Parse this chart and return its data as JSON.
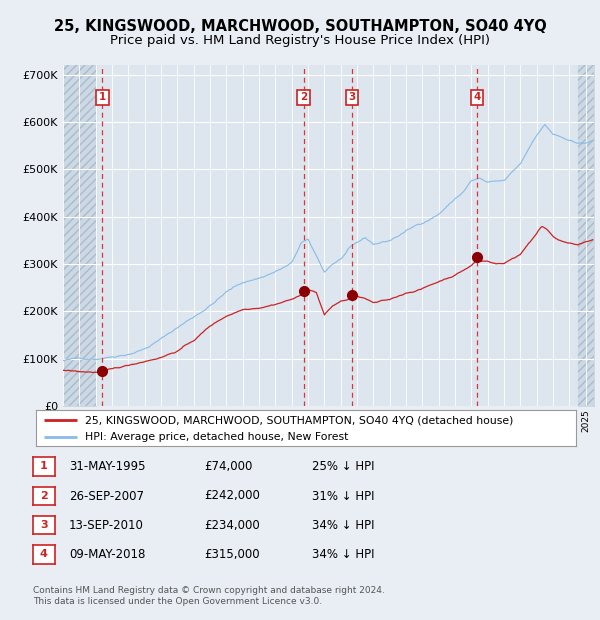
{
  "title": "25, KINGSWOOD, MARCHWOOD, SOUTHAMPTON, SO40 4YQ",
  "subtitle": "Price paid vs. HM Land Registry's House Price Index (HPI)",
  "legend_label_red": "25, KINGSWOOD, MARCHWOOD, SOUTHAMPTON, SO40 4YQ (detached house)",
  "legend_label_blue": "HPI: Average price, detached house, New Forest",
  "footer_line1": "Contains HM Land Registry data © Crown copyright and database right 2024.",
  "footer_line2": "This data is licensed under the Open Government Licence v3.0.",
  "sale_points": [
    {
      "num": 1,
      "date": "31-MAY-1995",
      "price": 74000,
      "pct": "25% ↓ HPI",
      "x_year": 1995.41
    },
    {
      "num": 2,
      "date": "26-SEP-2007",
      "price": 242000,
      "pct": "31% ↓ HPI",
      "x_year": 2007.73
    },
    {
      "num": 3,
      "date": "13-SEP-2010",
      "price": 234000,
      "pct": "34% ↓ HPI",
      "x_year": 2010.7
    },
    {
      "num": 4,
      "date": "09-MAY-2018",
      "price": 315000,
      "pct": "34% ↓ HPI",
      "x_year": 2018.35
    }
  ],
  "x_min": 1993.0,
  "x_max": 2025.5,
  "y_min": 0,
  "y_max": 720000,
  "y_ticks": [
    0,
    100000,
    200000,
    300000,
    400000,
    500000,
    600000,
    700000
  ],
  "y_tick_labels": [
    "£0",
    "£100K",
    "£200K",
    "£300K",
    "£400K",
    "£500K",
    "£600K",
    "£700K"
  ],
  "background_color": "#e8eef4",
  "plot_bg_color": "#dde6ef",
  "hatch_fill_color": "#ccd8e3",
  "grid_color": "#ffffff",
  "red_line_color": "#cc2222",
  "blue_line_color": "#88bbe8",
  "dot_color": "#8b0000",
  "vline_color": "#dd3333",
  "box_edge_color": "#cc2222",
  "title_fontsize": 10.5,
  "subtitle_fontsize": 9.5,
  "hatch_left_end": 1995.0,
  "hatch_right_start": 2024.5
}
